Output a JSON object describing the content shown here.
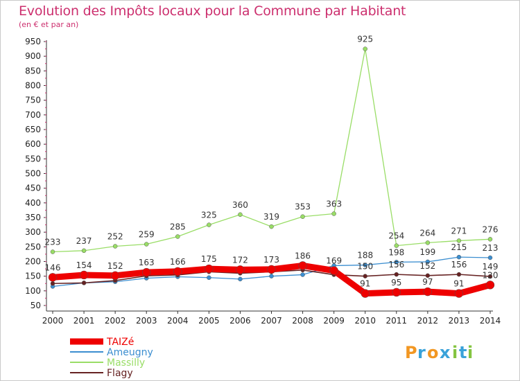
{
  "title": "Evolution des Impôts locaux pour la Commune par Habitant",
  "subtitle": "(en € et par an)",
  "logo": {
    "text": "Proxiti"
  },
  "chart_data": {
    "type": "line",
    "title": "Evolution des Impôts locaux pour la Commune par Habitant",
    "subtitle": "(en € et par an)",
    "x": [
      2000,
      2001,
      2002,
      2003,
      2004,
      2005,
      2006,
      2007,
      2008,
      2009,
      2010,
      2011,
      2012,
      2013,
      2014
    ],
    "ylim": [
      50,
      950
    ],
    "yticks": [
      50,
      100,
      150,
      200,
      250,
      300,
      350,
      400,
      450,
      500,
      550,
      600,
      650,
      700,
      750,
      800,
      850,
      900,
      950
    ],
    "grid": false,
    "legend_position": "bottom-left",
    "series": [
      {
        "name": "Massilly",
        "color": "#99dd66",
        "values": [
          233,
          237,
          252,
          259,
          285,
          325,
          360,
          319,
          353,
          363,
          925,
          254,
          264,
          271,
          276
        ]
      },
      {
        "name": "Ameugny",
        "color": "#3b8ed0",
        "values": [
          115,
          127,
          131,
          143,
          148,
          145,
          140,
          150,
          155,
          186,
          188,
          198,
          199,
          215,
          213
        ]
      },
      {
        "name": "Flagy",
        "color": "#662222",
        "values": [
          125,
          127,
          135,
          151,
          154,
          165,
          160,
          165,
          171,
          155,
          150,
          156,
          152,
          156,
          149
        ]
      },
      {
        "name": "TAIZé",
        "color": "#ee0000",
        "values": [
          146,
          154,
          152,
          163,
          166,
          175,
          172,
          173,
          186,
          169,
          91,
          95,
          97,
          91,
          120
        ]
      }
    ],
    "point_labels": [
      {
        "series": "Massilly",
        "values": [
          233,
          237,
          252,
          259,
          285,
          325,
          360,
          319,
          353,
          363,
          925,
          254,
          264,
          271,
          276
        ]
      },
      {
        "series": "Ameugny",
        "values": [
          null,
          null,
          null,
          null,
          null,
          null,
          null,
          null,
          null,
          null,
          188,
          198,
          199,
          215,
          213
        ]
      },
      {
        "series": "Flagy",
        "values": [
          null,
          null,
          null,
          null,
          null,
          null,
          null,
          null,
          null,
          null,
          150,
          156,
          152,
          156,
          149
        ]
      },
      {
        "series": "TAIZé",
        "values": [
          146,
          154,
          152,
          163,
          166,
          175,
          172,
          173,
          186,
          169,
          91,
          95,
          97,
          91,
          120
        ]
      }
    ]
  }
}
